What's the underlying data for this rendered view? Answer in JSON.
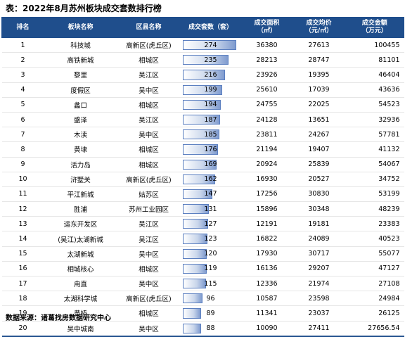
{
  "title": "表：2022年8月苏州板块成交套数排行榜",
  "headers": {
    "rank": "排名",
    "block": "板块名称",
    "district": "区县名称",
    "sets": "成交套数（套）",
    "area_line1": "成交面积",
    "area_line2": "（㎡）",
    "price_line1": "成交均价",
    "price_line2": "（元/㎡）",
    "amount_line1": "成交金额",
    "amount_line2": "（万元）"
  },
  "rows": [
    {
      "rank": "1",
      "block": "科技城",
      "district": "高新区(虎丘区)",
      "sets": 274,
      "area": "36380",
      "price": "27613",
      "amount": "100455"
    },
    {
      "rank": "2",
      "block": "高铁新城",
      "district": "相城区",
      "sets": 235,
      "area": "28213",
      "price": "28747",
      "amount": "81101"
    },
    {
      "rank": "3",
      "block": "黎里",
      "district": "吴江区",
      "sets": 216,
      "area": "23926",
      "price": "19395",
      "amount": "46404"
    },
    {
      "rank": "4",
      "block": "度假区",
      "district": "吴中区",
      "sets": 199,
      "area": "25610",
      "price": "17039",
      "amount": "43636"
    },
    {
      "rank": "5",
      "block": "蠡口",
      "district": "相城区",
      "sets": 194,
      "area": "24755",
      "price": "22025",
      "amount": "54523"
    },
    {
      "rank": "6",
      "block": "盛泽",
      "district": "吴江区",
      "sets": 187,
      "area": "24128",
      "price": "13651",
      "amount": "32936"
    },
    {
      "rank": "7",
      "block": "木渎",
      "district": "吴中区",
      "sets": 185,
      "area": "23811",
      "price": "24267",
      "amount": "57781"
    },
    {
      "rank": "8",
      "block": "黄埭",
      "district": "相城区",
      "sets": 176,
      "area": "21194",
      "price": "19407",
      "amount": "41132"
    },
    {
      "rank": "9",
      "block": "活力岛",
      "district": "相城区",
      "sets": 169,
      "area": "20924",
      "price": "25839",
      "amount": "54067"
    },
    {
      "rank": "10",
      "block": "浒墅关",
      "district": "高新区(虎丘区)",
      "sets": 162,
      "area": "16930",
      "price": "20527",
      "amount": "34752"
    },
    {
      "rank": "11",
      "block": "平江新城",
      "district": "姑苏区",
      "sets": 147,
      "area": "17256",
      "price": "30830",
      "amount": "53199"
    },
    {
      "rank": "12",
      "block": "胜浦",
      "district": "苏州工业园区",
      "sets": 131,
      "area": "15896",
      "price": "30348",
      "amount": "48239"
    },
    {
      "rank": "13",
      "block": "运东开发区",
      "district": "吴江区",
      "sets": 127,
      "area": "12191",
      "price": "19181",
      "amount": "23383"
    },
    {
      "rank": "14",
      "block": "(吴江)太湖新城",
      "district": "吴江区",
      "sets": 123,
      "area": "16822",
      "price": "24089",
      "amount": "40523"
    },
    {
      "rank": "15",
      "block": "太湖新城",
      "district": "吴中区",
      "sets": 120,
      "area": "17930",
      "price": "30717",
      "amount": "55077"
    },
    {
      "rank": "16",
      "block": "相城核心",
      "district": "相城区",
      "sets": 119,
      "area": "16136",
      "price": "29207",
      "amount": "47127"
    },
    {
      "rank": "17",
      "block": "甪直",
      "district": "吴中区",
      "sets": 115,
      "area": "12336",
      "price": "21974",
      "amount": "27108"
    },
    {
      "rank": "18",
      "block": "太湖科学城",
      "district": "高新区(虎丘区)",
      "sets": 96,
      "area": "10587",
      "price": "23598",
      "amount": "24984"
    },
    {
      "rank": "19",
      "block": "黄桥",
      "district": "相城区",
      "sets": 89,
      "area": "11341",
      "price": "23037",
      "amount": "26125"
    },
    {
      "rank": "20",
      "block": "吴中城南",
      "district": "吴中区",
      "sets": 88,
      "area": "10090",
      "price": "27411",
      "amount": "27656.54"
    }
  ],
  "source": "数据来源：诸葛找房数据研究中心",
  "colors": {
    "header_bg": "#1f4e8c",
    "bar_fill": "#c9d6eb",
    "bar_border": "#5b7fc0"
  }
}
